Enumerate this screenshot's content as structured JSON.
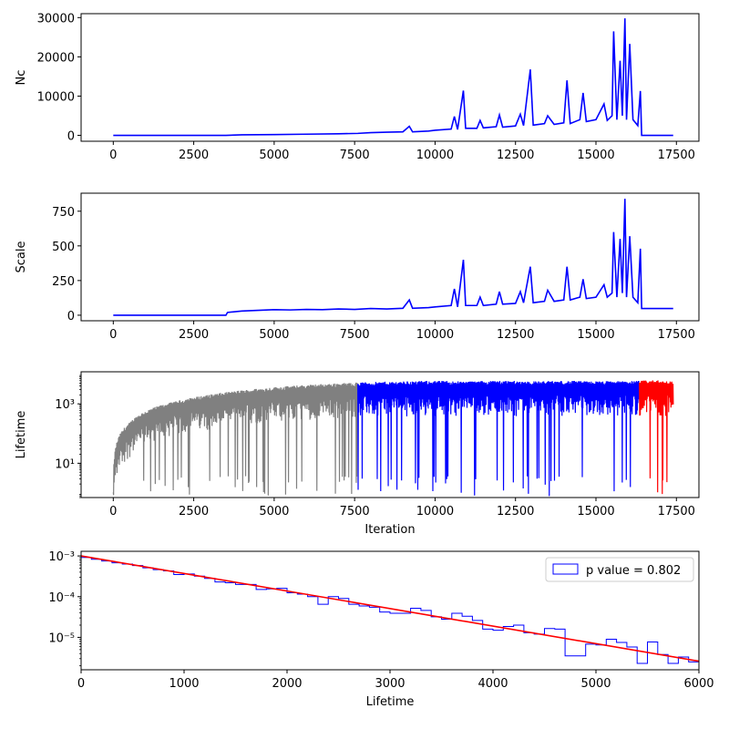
{
  "chart_data": [
    {
      "type": "line",
      "xlabel": "",
      "ylabel": "Nc",
      "xlim": [
        -1000,
        18200
      ],
      "ylim": [
        -1500,
        31000
      ],
      "xticks": [
        0,
        2500,
        5000,
        7500,
        10000,
        12500,
        15000,
        17500
      ],
      "yticks": [
        0,
        10000,
        20000,
        30000
      ],
      "grid": false,
      "series": [
        {
          "color": "#0000ff",
          "points": [
            [
              0,
              0
            ],
            [
              3500,
              0
            ],
            [
              4000,
              150
            ],
            [
              5000,
              200
            ],
            [
              6000,
              300
            ],
            [
              7000,
              400
            ],
            [
              7600,
              500
            ],
            [
              8000,
              700
            ],
            [
              8500,
              800
            ],
            [
              9000,
              900
            ],
            [
              9200,
              2300
            ],
            [
              9300,
              900
            ],
            [
              9800,
              1100
            ],
            [
              10000,
              1300
            ],
            [
              10500,
              1600
            ],
            [
              10600,
              4800
            ],
            [
              10700,
              1500
            ],
            [
              10880,
              11400
            ],
            [
              10950,
              1800
            ],
            [
              11300,
              1800
            ],
            [
              11400,
              3800
            ],
            [
              11500,
              1900
            ],
            [
              11900,
              2200
            ],
            [
              12000,
              5200
            ],
            [
              12100,
              2100
            ],
            [
              12500,
              2400
            ],
            [
              12650,
              5400
            ],
            [
              12750,
              2500
            ],
            [
              12960,
              16800
            ],
            [
              13050,
              2600
            ],
            [
              13400,
              3000
            ],
            [
              13500,
              5000
            ],
            [
              13700,
              2800
            ],
            [
              14000,
              3200
            ],
            [
              14100,
              14000
            ],
            [
              14200,
              3000
            ],
            [
              14500,
              4000
            ],
            [
              14600,
              10800
            ],
            [
              14700,
              3500
            ],
            [
              15000,
              4000
            ],
            [
              15250,
              8000
            ],
            [
              15350,
              3800
            ],
            [
              15500,
              5000
            ],
            [
              15550,
              26500
            ],
            [
              15650,
              4000
            ],
            [
              15750,
              19000
            ],
            [
              15820,
              5000
            ],
            [
              15900,
              29800
            ],
            [
              15950,
              4000
            ],
            [
              16050,
              23300
            ],
            [
              16150,
              4000
            ],
            [
              16300,
              2500
            ],
            [
              16380,
              11300
            ],
            [
              16420,
              0
            ],
            [
              17400,
              0
            ]
          ]
        }
      ]
    },
    {
      "type": "line",
      "xlabel": "",
      "ylabel": "Scale",
      "xlim": [
        -1000,
        18200
      ],
      "ylim": [
        -40,
        880
      ],
      "xticks": [
        0,
        2500,
        5000,
        7500,
        10000,
        12500,
        15000,
        17500
      ],
      "yticks": [
        0,
        250,
        500,
        750
      ],
      "grid": false,
      "series": [
        {
          "color": "#0000ff",
          "points": [
            [
              0,
              0
            ],
            [
              3500,
              0
            ],
            [
              3550,
              20
            ],
            [
              4000,
              30
            ],
            [
              4500,
              35
            ],
            [
              5000,
              40
            ],
            [
              5500,
              38
            ],
            [
              6000,
              42
            ],
            [
              6500,
              40
            ],
            [
              7000,
              45
            ],
            [
              7500,
              42
            ],
            [
              8000,
              48
            ],
            [
              8500,
              45
            ],
            [
              9000,
              50
            ],
            [
              9200,
              110
            ],
            [
              9300,
              50
            ],
            [
              9800,
              55
            ],
            [
              10000,
              60
            ],
            [
              10500,
              70
            ],
            [
              10600,
              190
            ],
            [
              10700,
              60
            ],
            [
              10880,
              400
            ],
            [
              10950,
              70
            ],
            [
              11300,
              70
            ],
            [
              11400,
              130
            ],
            [
              11500,
              70
            ],
            [
              11900,
              80
            ],
            [
              12000,
              170
            ],
            [
              12100,
              80
            ],
            [
              12500,
              85
            ],
            [
              12650,
              170
            ],
            [
              12750,
              90
            ],
            [
              12960,
              350
            ],
            [
              13050,
              90
            ],
            [
              13400,
              100
            ],
            [
              13500,
              180
            ],
            [
              13700,
              100
            ],
            [
              14000,
              110
            ],
            [
              14100,
              350
            ],
            [
              14200,
              110
            ],
            [
              14500,
              130
            ],
            [
              14600,
              260
            ],
            [
              14700,
              120
            ],
            [
              15000,
              130
            ],
            [
              15250,
              220
            ],
            [
              15350,
              130
            ],
            [
              15500,
              160
            ],
            [
              15550,
              600
            ],
            [
              15650,
              130
            ],
            [
              15750,
              550
            ],
            [
              15820,
              160
            ],
            [
              15900,
              840
            ],
            [
              15950,
              130
            ],
            [
              16050,
              570
            ],
            [
              16150,
              130
            ],
            [
              16300,
              90
            ],
            [
              16380,
              480
            ],
            [
              16420,
              48
            ],
            [
              17400,
              48
            ]
          ]
        }
      ]
    },
    {
      "type": "line",
      "xlabel": "Iteration",
      "ylabel": "Lifetime",
      "yscale": "log",
      "xlim": [
        -1000,
        18200
      ],
      "ylim": [
        0.7,
        12000
      ],
      "xticks": [
        0,
        2500,
        5000,
        7500,
        10000,
        12500,
        15000,
        17500
      ],
      "ytick_labels": [
        "10¹",
        "10³"
      ],
      "yticks": [
        10,
        1000
      ],
      "grid": false,
      "series": [
        {
          "color": "#808080",
          "x_range": [
            0,
            7600
          ],
          "envelope_top": [
            [
              0,
              1
            ],
            [
              200,
              80
            ],
            [
              500,
              200
            ],
            [
              1000,
              500
            ],
            [
              2000,
              1100
            ],
            [
              3000,
              1800
            ],
            [
              4000,
              2500
            ],
            [
              5000,
              3200
            ],
            [
              6000,
              3800
            ],
            [
              7000,
              4300
            ],
            [
              7600,
              4600
            ]
          ]
        },
        {
          "color": "#0000ff",
          "x_range": [
            7600,
            16350
          ],
          "envelope_top": [
            [
              7600,
              4600
            ],
            [
              9000,
              5000
            ],
            [
              10000,
              5200
            ],
            [
              11000,
              5000
            ],
            [
              12000,
              5300
            ],
            [
              13000,
              5000
            ],
            [
              14000,
              5200
            ],
            [
              15000,
              5000
            ],
            [
              16350,
              5200
            ]
          ]
        },
        {
          "color": "#ff0000",
          "x_range": [
            16350,
            17400
          ],
          "envelope_top": [
            [
              16350,
              5200
            ],
            [
              16800,
              5500
            ],
            [
              17400,
              5000
            ]
          ]
        }
      ]
    },
    {
      "type": "histogram",
      "xlabel": "Lifetime",
      "ylabel": "",
      "yscale": "log",
      "xlim": [
        0,
        6000
      ],
      "ylim": [
        1.6e-06,
        0.0013
      ],
      "xticks": [
        0,
        1000,
        2000,
        3000,
        4000,
        5000,
        6000
      ],
      "yticks": [
        1e-05,
        0.0001,
        0.001
      ],
      "ytick_labels": [
        "10⁻⁵",
        "10⁻⁴",
        "10⁻³"
      ],
      "grid": false,
      "legend": {
        "label": "p value = 0.802",
        "placement": "top-right"
      },
      "histogram": {
        "color": "#0000ff",
        "bin_width": 100,
        "values": [
          0.00092,
          0.00083,
          0.00075,
          0.00068,
          0.00063,
          0.00058,
          0.00051,
          0.00046,
          0.00043,
          0.00035,
          0.00036,
          0.00032,
          0.00028,
          0.00023,
          0.00022,
          0.0002,
          0.0002,
          0.00015,
          0.000155,
          0.00016,
          0.000125,
          0.000115,
          0.0001,
          6.5e-05,
          0.0001,
          9e-05,
          6.5e-05,
          5.9e-05,
          5.5e-05,
          4.2e-05,
          3.9e-05,
          3.9e-05,
          5.2e-05,
          4.6e-05,
          3.2e-05,
          2.8e-05,
          3.9e-05,
          3.3e-05,
          2.6e-05,
          1.6e-05,
          1.5e-05,
          1.85e-05,
          2e-05,
          1.3e-05,
          1.2e-05,
          1.65e-05,
          1.6e-05,
          3.5e-06,
          3.5e-06,
          6.8e-06,
          6.5e-06,
          9e-06,
          7.5e-06,
          5.8e-06,
          2.3e-06,
          7.7e-06,
          3.8e-06,
          2.3e-06,
          3.3e-06,
          2.5e-06
        ]
      },
      "fit": {
        "color": "#ff0000",
        "points": [
          [
            0,
            0.001
          ],
          [
            6000,
            2.6e-06
          ]
        ]
      }
    }
  ]
}
